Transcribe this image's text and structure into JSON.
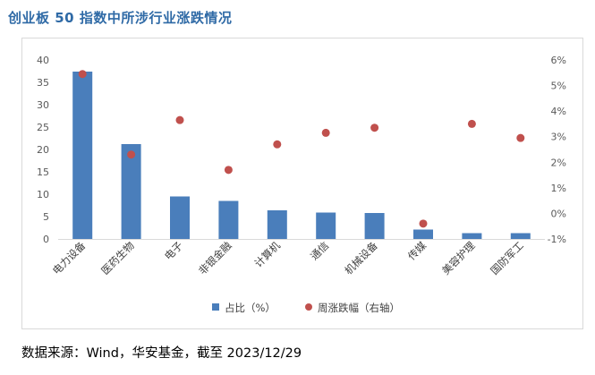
{
  "title": "创业板 50 指数中所涉行业涨跌情况",
  "source": "数据来源：Wind，华安基金，截至 2023/12/29",
  "colors": {
    "bar": "#4a7ebb",
    "dot": "#c0504d",
    "title": "#2f6aa6",
    "axis": "#595959",
    "grid": "#d9d9d9"
  },
  "chart_data": {
    "type": "bar",
    "categories": [
      "电力设备",
      "医药生物",
      "电子",
      "非银金融",
      "计算机",
      "通信",
      "机械设备",
      "传媒",
      "美容护理",
      "国防军工"
    ],
    "series": [
      {
        "name": "占比（%）",
        "type": "bar",
        "axis": "left",
        "values": [
          37.4,
          21.2,
          9.5,
          8.5,
          6.4,
          5.9,
          5.8,
          2.1,
          1.3,
          1.3
        ]
      },
      {
        "name": "周涨跌幅（右轴）",
        "type": "scatter",
        "axis": "right",
        "values": [
          5.45,
          2.3,
          3.65,
          1.7,
          2.7,
          3.15,
          3.35,
          -0.4,
          3.5,
          2.95
        ]
      }
    ],
    "ylim_left": [
      0,
      40
    ],
    "yticks_left": [
      "0",
      "5",
      "10",
      "15",
      "20",
      "25",
      "30",
      "35",
      "40"
    ],
    "ylim_right": [
      -1,
      6
    ],
    "yticks_right": [
      "-1%",
      "0%",
      "1%",
      "2%",
      "3%",
      "4%",
      "5%",
      "6%"
    ],
    "grid": false,
    "legend_position": "bottom"
  }
}
